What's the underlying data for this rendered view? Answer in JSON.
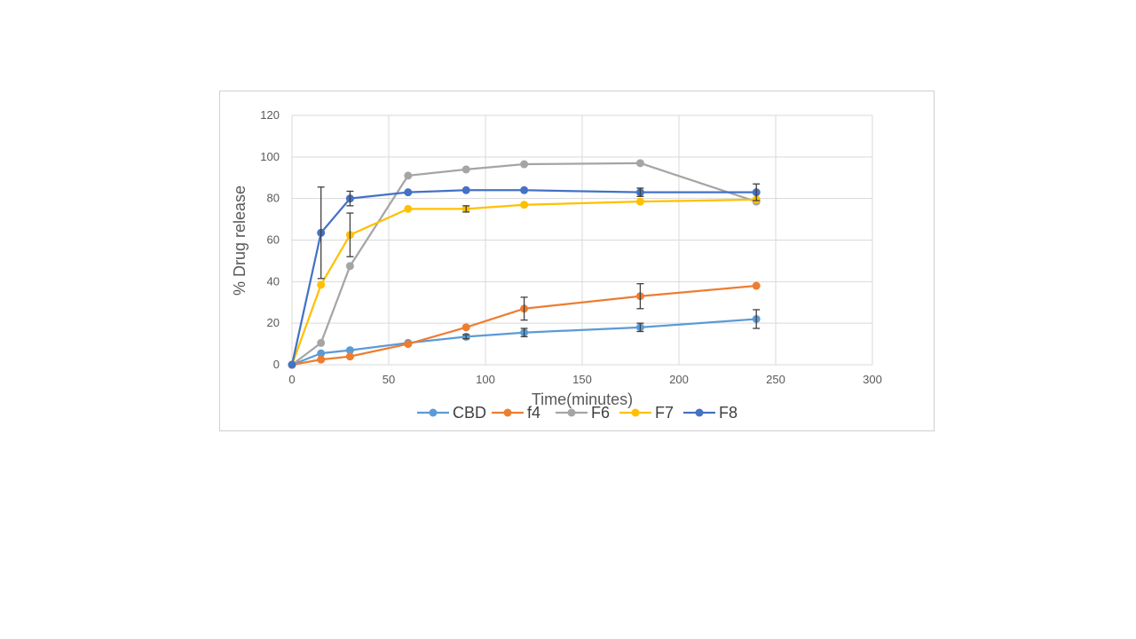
{
  "chart_data": {
    "type": "line",
    "xlabel": "Time(minutes)",
    "ylabel": "% Drug release",
    "xlim": [
      0,
      300
    ],
    "ylim": [
      0,
      120
    ],
    "xticks": [
      0,
      50,
      100,
      150,
      200,
      250,
      300
    ],
    "yticks": [
      0,
      20,
      40,
      60,
      80,
      100,
      120
    ],
    "grid": true,
    "legend_position": "bottom",
    "x": [
      0,
      15,
      30,
      60,
      90,
      120,
      180,
      240
    ],
    "series": [
      {
        "name": "CBD",
        "color": "#5b9bd5",
        "values": [
          0,
          5.5,
          7,
          10.5,
          13.5,
          15.5,
          18,
          22
        ],
        "error": [
          0,
          0,
          0,
          0,
          1,
          2,
          2,
          4.5
        ]
      },
      {
        "name": "f4",
        "color": "#ed7d31",
        "values": [
          0,
          2.5,
          4,
          10,
          18,
          27,
          33,
          38
        ],
        "error": [
          0,
          0,
          0,
          0,
          0,
          5.5,
          6,
          0
        ]
      },
      {
        "name": "F6",
        "color": "#a5a5a5",
        "values": [
          0,
          10.5,
          47.5,
          91,
          94,
          96.5,
          97,
          78.5
        ],
        "error": [
          0,
          0,
          0,
          0,
          0,
          0,
          0,
          0
        ]
      },
      {
        "name": "F7",
        "color": "#ffc000",
        "values": [
          0,
          38.5,
          62.5,
          75,
          75,
          77,
          78.5,
          79.5
        ],
        "error": [
          0,
          0,
          10.5,
          0,
          1.5,
          0,
          0,
          0
        ]
      },
      {
        "name": "F8",
        "color": "#4472c4",
        "values": [
          0,
          63.5,
          80,
          83,
          84,
          84,
          83,
          83
        ],
        "error": [
          0,
          22,
          3.5,
          0,
          0,
          0,
          2,
          4
        ]
      }
    ]
  }
}
